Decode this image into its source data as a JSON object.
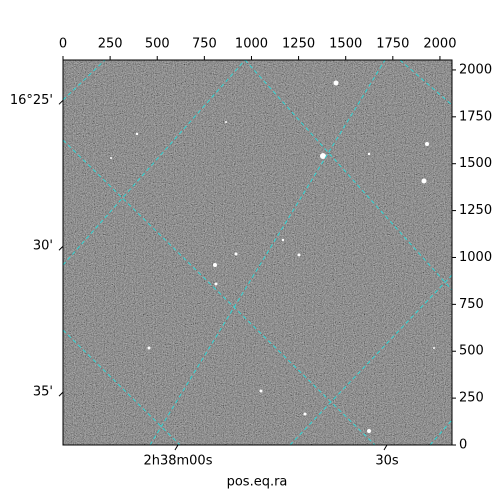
{
  "chart_data": {
    "type": "image",
    "x_label": "pos.eq.ra",
    "xlim": [
      0,
      2064
    ],
    "ylim": [
      0,
      2053
    ],
    "xticks": [
      0,
      250,
      500,
      750,
      1000,
      1250,
      1500,
      1750,
      2000
    ],
    "yticks": [
      0,
      250,
      500,
      750,
      1000,
      1250,
      1500,
      1750,
      2000
    ],
    "world_xticks": [
      {
        "value": 610,
        "label": "2h38m00s"
      },
      {
        "value": 1719,
        "label": "30s"
      }
    ],
    "world_yticks": [
      {
        "value": 1838,
        "label": "16°25'"
      },
      {
        "value": 1060,
        "label": "30'"
      },
      {
        "value": 282,
        "label": "35'"
      }
    ],
    "grid": true,
    "grid_color": "#2fd6d6"
  }
}
